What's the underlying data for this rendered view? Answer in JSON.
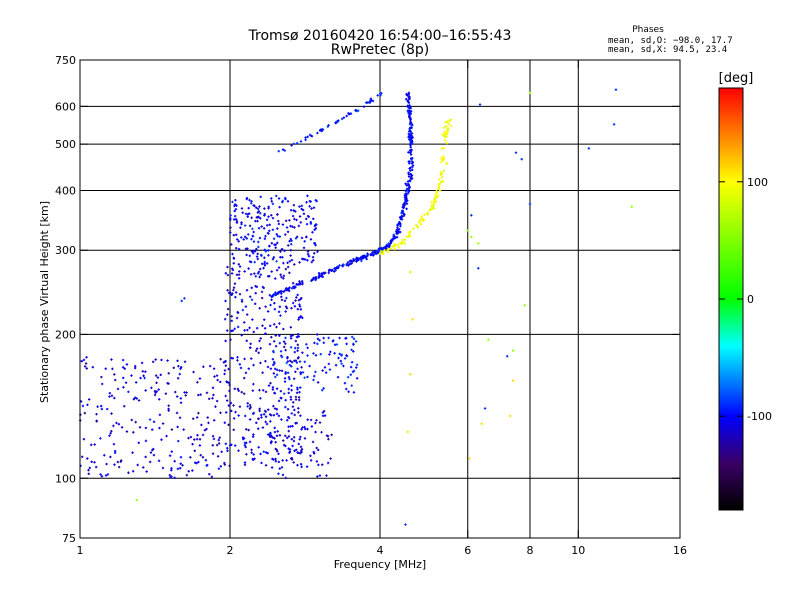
{
  "chart_data": {
    "type": "scatter",
    "title": "Tromsø 20160420 16:54:00–16:55:43",
    "subtitle": "RwPretec (8p)",
    "xlabel": "Frequency [MHz]",
    "ylabel": "Stationary phase Virtual Height [km]",
    "x_scale": "log",
    "y_scale": "log",
    "xlim": [
      1,
      16
    ],
    "ylim": [
      75,
      750
    ],
    "x_ticks": [
      1,
      2,
      4,
      6,
      8,
      10,
      16
    ],
    "y_ticks": [
      75,
      100,
      200,
      300,
      400,
      500,
      600,
      750
    ],
    "x_gridlines": [
      2,
      4,
      6,
      8,
      10
    ],
    "y_gridlines": [
      100,
      200,
      300,
      400,
      500,
      600
    ],
    "grid": true,
    "stats": {
      "heading": "Phases",
      "line_o": "mean, sd,O: −98.0, 17.7",
      "line_x": "mean, sd,X:  94.5, 23.4"
    },
    "colorbar": {
      "label": "[deg]",
      "range": [
        -180,
        180
      ],
      "ticks": [
        100,
        0,
        -100
      ],
      "colors": [
        "#ff0000",
        "#ff8000",
        "#ffff00",
        "#00ff00",
        "#00ffff",
        "#0000ff",
        "#3a0066",
        "#000000"
      ]
    },
    "traces": [
      {
        "type": "band",
        "description": "Cluster",
        "phase": -110,
        "x_range": [
          1.0,
          2.0
        ],
        "y_range": [
          100,
          180
        ],
        "count": 260
      },
      {
        "type": "band",
        "description": "Cluster",
        "phase": -110,
        "x_range": [
          1.95,
          2.8
        ],
        "y_range": [
          105,
          280
        ],
        "count": 380
      },
      {
        "type": "band",
        "description": "Cluster",
        "phase": -105,
        "x_range": [
          2.0,
          3.0
        ],
        "y_range": [
          280,
          390
        ],
        "count": 240
      },
      {
        "type": "band",
        "description": "Cluster",
        "phase": -95,
        "x_range": [
          2.4,
          3.6
        ],
        "y_range": [
          150,
          200
        ],
        "count": 110
      },
      {
        "type": "band",
        "description": "Cluster",
        "phase": -110,
        "x_range": [
          2.4,
          3.2
        ],
        "y_range": [
          100,
          140
        ],
        "count": 70
      },
      {
        "type": "curve",
        "description": "O-trace",
        "phase": -100,
        "points": [
          [
            2.4,
            240
          ],
          [
            2.9,
            260
          ],
          [
            3.4,
            280
          ],
          [
            3.9,
            296
          ],
          [
            4.15,
            305
          ],
          [
            4.35,
            330
          ],
          [
            4.5,
            380
          ],
          [
            4.6,
            430
          ],
          [
            4.62,
            500
          ],
          [
            4.6,
            560
          ],
          [
            4.55,
            640
          ]
        ],
        "count": 420,
        "jitter": 0.015
      },
      {
        "type": "curve",
        "description": "X-trace",
        "phase": 95,
        "points": [
          [
            4.0,
            295
          ],
          [
            4.4,
            310
          ],
          [
            4.8,
            340
          ],
          [
            5.1,
            370
          ],
          [
            5.25,
            400
          ],
          [
            5.35,
            450
          ],
          [
            5.4,
            520
          ],
          [
            5.5,
            560
          ]
        ],
        "count": 130,
        "jitter": 0.02
      },
      {
        "type": "curve",
        "description": "Upper-branch",
        "phase": -95,
        "points": [
          [
            2.5,
            480
          ],
          [
            2.9,
            520
          ],
          [
            3.3,
            560
          ],
          [
            3.7,
            600
          ],
          [
            4.05,
            640
          ]
        ],
        "count": 55,
        "jitter": 0.01
      },
      {
        "type": "points",
        "description": "Isolated",
        "phase": -90,
        "points": [
          [
            1.6,
            235
          ],
          [
            1.62,
            238
          ],
          [
            6.35,
            605
          ],
          [
            7.5,
            480
          ],
          [
            7.7,
            465
          ],
          [
            8.0,
            375
          ],
          [
            10.5,
            490
          ],
          [
            11.8,
            550
          ],
          [
            11.9,
            650
          ],
          [
            6.1,
            355
          ],
          [
            6.3,
            275
          ],
          [
            4.5,
            80
          ],
          [
            6.5,
            140
          ],
          [
            7.2,
            180
          ]
        ]
      },
      {
        "type": "points",
        "description": "Isolated",
        "phase": 60,
        "points": [
          [
            1.3,
            90
          ],
          [
            6.0,
            330
          ],
          [
            6.1,
            320
          ],
          [
            6.3,
            310
          ],
          [
            6.6,
            195
          ],
          [
            7.4,
            185
          ],
          [
            7.8,
            230
          ],
          [
            8.0,
            640
          ],
          [
            12.8,
            370
          ]
        ]
      },
      {
        "type": "points",
        "description": "Isolated",
        "phase": 110,
        "points": [
          [
            4.6,
            270
          ],
          [
            4.65,
            215
          ],
          [
            4.6,
            165
          ],
          [
            4.55,
            125
          ],
          [
            6.05,
            110
          ],
          [
            7.3,
            135
          ],
          [
            7.4,
            160
          ],
          [
            6.4,
            130
          ]
        ]
      }
    ]
  }
}
